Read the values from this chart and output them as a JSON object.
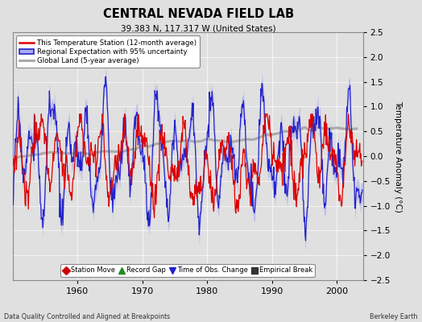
{
  "title": "CENTRAL NEVADA FIELD LAB",
  "subtitle": "39.383 N, 117.317 W (United States)",
  "xlabel_left": "Data Quality Controlled and Aligned at Breakpoints",
  "xlabel_right": "Berkeley Earth",
  "ylabel": "Temperature Anomaly (°C)",
  "xlim": [
    1950,
    2004
  ],
  "ylim": [
    -2.5,
    2.5
  ],
  "yticks": [
    -2.5,
    -2,
    -1.5,
    -1,
    -0.5,
    0,
    0.5,
    1,
    1.5,
    2,
    2.5
  ],
  "xticks": [
    1960,
    1970,
    1980,
    1990,
    2000
  ],
  "background_color": "#e0e0e0",
  "plot_bg_color": "#e0e0e0",
  "station_color": "#dd0000",
  "regional_color": "#2222cc",
  "regional_fill_color": "#aaaaee",
  "global_color": "#aaaaaa",
  "legend_items": [
    {
      "label": "This Temperature Station (12-month average)",
      "color": "#dd0000"
    },
    {
      "label": "Regional Expectation with 95% uncertainty",
      "color": "#2222cc",
      "fill": "#aaaaee"
    },
    {
      "label": "Global Land (5-year average)",
      "color": "#aaaaaa"
    }
  ],
  "bottom_legend": [
    {
      "label": "Station Move",
      "color": "#cc0000",
      "marker": "D"
    },
    {
      "label": "Record Gap",
      "color": "#228B22",
      "marker": "^"
    },
    {
      "label": "Time of Obs. Change",
      "color": "#2222cc",
      "marker": "v"
    },
    {
      "label": "Empirical Break",
      "color": "#333333",
      "marker": "s"
    }
  ]
}
